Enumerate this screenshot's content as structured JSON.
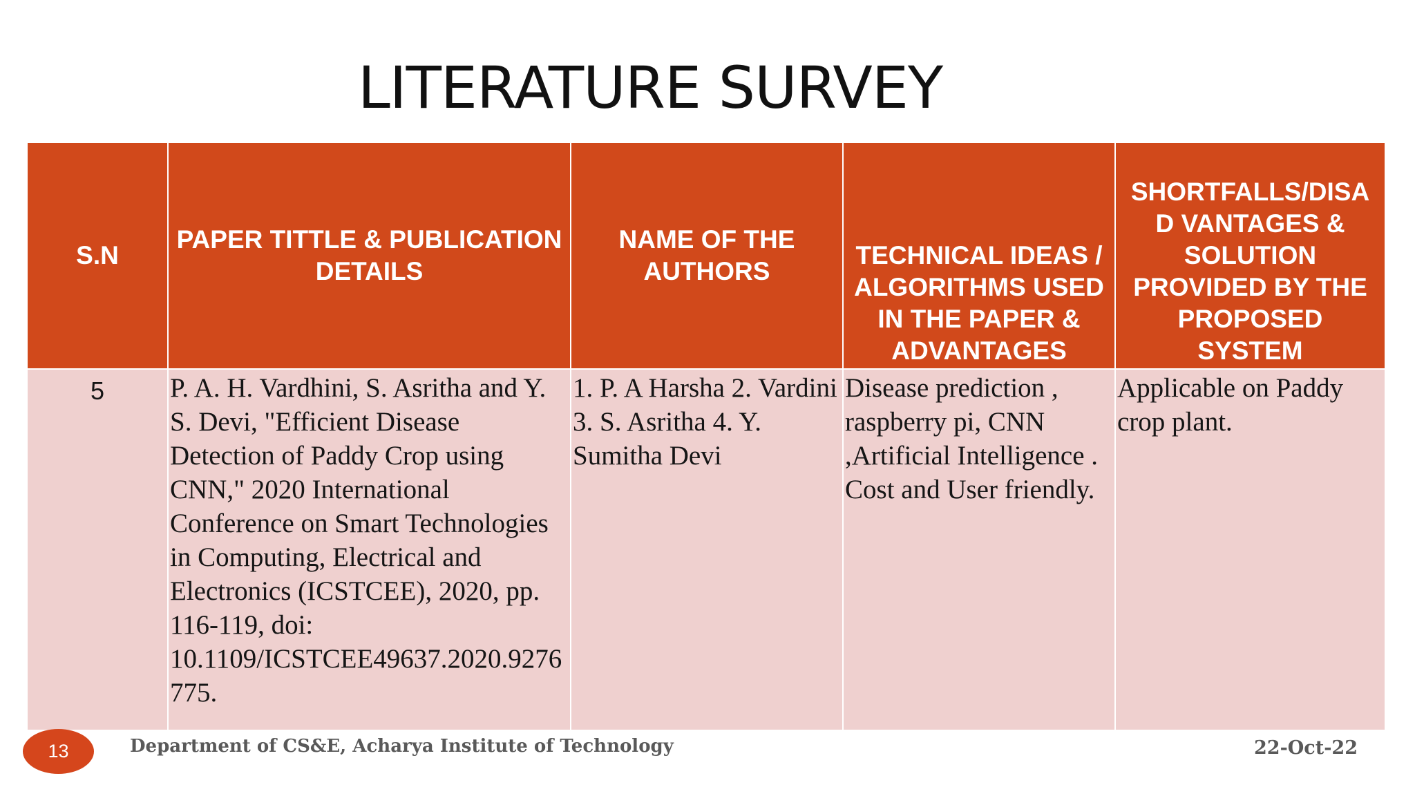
{
  "slide": {
    "title": "LITERATURE SURVEY",
    "page_number": "13",
    "footer_text": "Department of CS&E, Acharya Institute of Technology",
    "date": "22-Oct-22"
  },
  "colors": {
    "header_fill": "#d1491b",
    "row_fill": "#efd0cf",
    "badge_fill": "#d5461c"
  },
  "table": {
    "headers": [
      "S.N",
      "PAPER TITTLE & PUBLICATION DETAILS",
      "NAME OF THE AUTHORS",
      "TECHNICAL IDEAS / ALGORITHMS USED IN THE PAPER & ADVANTAGES",
      "SHORTFALLS/DISA D VANTAGES & SOLUTION PROVIDED BY THE PROPOSED SYSTEM"
    ],
    "rows": [
      {
        "sn": "5",
        "paper": "P. A. H. Vardhini, S. Asritha and Y. S. Devi, \"Efficient Disease Detection of Paddy Crop using CNN,\" 2020 International Conference on Smart Technologies in Computing, Electrical and Electronics (ICSTCEE), 2020, pp. 116-119, doi: 10.1109/ICSTCEE49637.2020.9276775.",
        "authors": "1. P. A Harsha 2. Vardini 3. S. Asritha 4. Y. Sumitha Devi",
        "ideas": "Disease prediction , raspberry pi, CNN ,Artificial Intelligence . Cost and User friendly.",
        "shortfalls": "Applicable on Paddy crop plant."
      }
    ]
  }
}
